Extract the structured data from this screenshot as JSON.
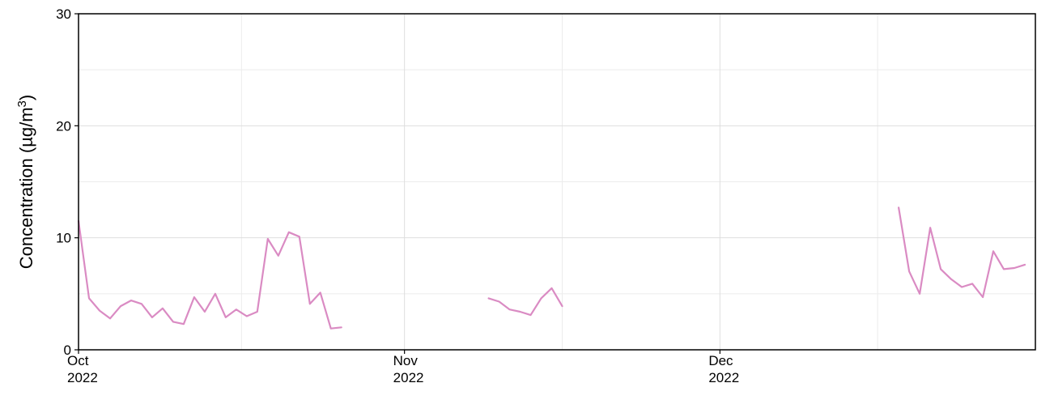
{
  "chart_data": {
    "type": "line",
    "title": "",
    "xlabel": "",
    "ylabel": "Concentration (µg/m",
    "ylabel_superscript": "3",
    "ylabel_suffix": ")",
    "xlim": [
      "2022-10-01",
      "2022-12-31"
    ],
    "ylim": [
      0,
      30
    ],
    "yticks": [
      0,
      10,
      20,
      30
    ],
    "xticks": [
      {
        "date": "2022-10-01",
        "label_month": "Oct",
        "label_year": "2022"
      },
      {
        "date": "2022-11-01",
        "label_month": "Nov",
        "label_year": "2022"
      },
      {
        "date": "2022-12-01",
        "label_month": "Dec",
        "label_year": "2022"
      }
    ],
    "grid": true,
    "line_color": "#DA8BC3",
    "series": [
      {
        "segments": [
          [
            [
              "2022-10-01",
              11.5
            ],
            [
              "2022-10-02",
              4.6
            ],
            [
              "2022-10-03",
              3.5
            ],
            [
              "2022-10-04",
              2.8
            ],
            [
              "2022-10-05",
              3.9
            ],
            [
              "2022-10-06",
              4.4
            ],
            [
              "2022-10-07",
              4.1
            ],
            [
              "2022-10-08",
              2.9
            ],
            [
              "2022-10-09",
              3.7
            ],
            [
              "2022-10-10",
              2.5
            ],
            [
              "2022-10-11",
              2.3
            ],
            [
              "2022-10-12",
              4.7
            ],
            [
              "2022-10-13",
              3.4
            ],
            [
              "2022-10-14",
              5.0
            ],
            [
              "2022-10-15",
              2.9
            ],
            [
              "2022-10-16",
              3.6
            ],
            [
              "2022-10-17",
              3.0
            ],
            [
              "2022-10-18",
              3.4
            ],
            [
              "2022-10-19",
              9.9
            ],
            [
              "2022-10-20",
              8.4
            ],
            [
              "2022-10-21",
              10.5
            ],
            [
              "2022-10-22",
              10.1
            ],
            [
              "2022-10-23",
              4.1
            ],
            [
              "2022-10-24",
              5.1
            ],
            [
              "2022-10-25",
              1.9
            ],
            [
              "2022-10-26",
              2.0
            ]
          ],
          [
            [
              "2022-11-09",
              4.6
            ],
            [
              "2022-11-10",
              4.3
            ],
            [
              "2022-11-11",
              3.6
            ],
            [
              "2022-11-12",
              3.4
            ],
            [
              "2022-11-13",
              3.1
            ],
            [
              "2022-11-14",
              4.6
            ],
            [
              "2022-11-15",
              5.5
            ],
            [
              "2022-11-16",
              3.9
            ]
          ],
          [
            [
              "2022-12-18",
              12.7
            ],
            [
              "2022-12-19",
              7.0
            ],
            [
              "2022-12-20",
              5.0
            ],
            [
              "2022-12-21",
              10.9
            ],
            [
              "2022-12-22",
              7.2
            ],
            [
              "2022-12-23",
              6.3
            ],
            [
              "2022-12-24",
              5.6
            ],
            [
              "2022-12-25",
              5.9
            ],
            [
              "2022-12-26",
              4.7
            ],
            [
              "2022-12-27",
              8.8
            ],
            [
              "2022-12-28",
              7.2
            ],
            [
              "2022-12-29",
              7.3
            ],
            [
              "2022-12-30",
              7.6
            ]
          ]
        ]
      }
    ]
  }
}
